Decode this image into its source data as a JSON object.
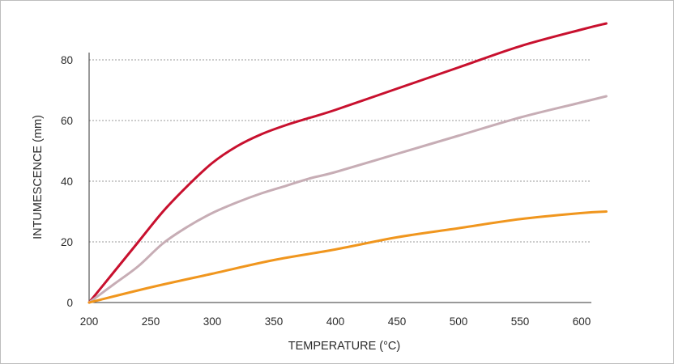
{
  "chart_data": {
    "type": "line",
    "title": "",
    "xlabel": "TEMPERATURE (°C)",
    "ylabel": "INTUMESCENCE (mm)",
    "xlim": [
      200,
      620
    ],
    "ylim": [
      0,
      85
    ],
    "x_ticks": [
      "200",
      "250",
      "300",
      "350",
      "400",
      "450",
      "500",
      "550",
      "600"
    ],
    "y_ticks": [
      "0",
      "20",
      "40",
      "60",
      "80"
    ],
    "grid": "horizontal dashed",
    "legend": "none",
    "series": [
      {
        "color": "#c8102e",
        "x": [
          200,
          220,
          240,
          260,
          280,
          300,
          320,
          340,
          360,
          380,
          400,
          450,
          500,
          550,
          600,
          620
        ],
        "y": [
          0,
          10,
          20,
          30,
          38.5,
          46,
          51.5,
          55.5,
          58.5,
          61,
          63.5,
          70.5,
          77.5,
          84.5,
          90,
          92
        ]
      },
      {
        "color": "#c7adb5",
        "x": [
          200,
          220,
          240,
          260,
          280,
          300,
          320,
          340,
          360,
          380,
          400,
          450,
          500,
          550,
          600,
          620
        ],
        "y": [
          0,
          6,
          12,
          19.5,
          25,
          29.5,
          33,
          36,
          38.5,
          41,
          43,
          49,
          55,
          61,
          66,
          68
        ]
      },
      {
        "color": "#f0961e",
        "x": [
          200,
          250,
          300,
          350,
          400,
          450,
          500,
          550,
          600,
          620
        ],
        "y": [
          0,
          5,
          9.5,
          14,
          17.5,
          21.5,
          24.5,
          27.5,
          29.5,
          30
        ]
      }
    ]
  }
}
